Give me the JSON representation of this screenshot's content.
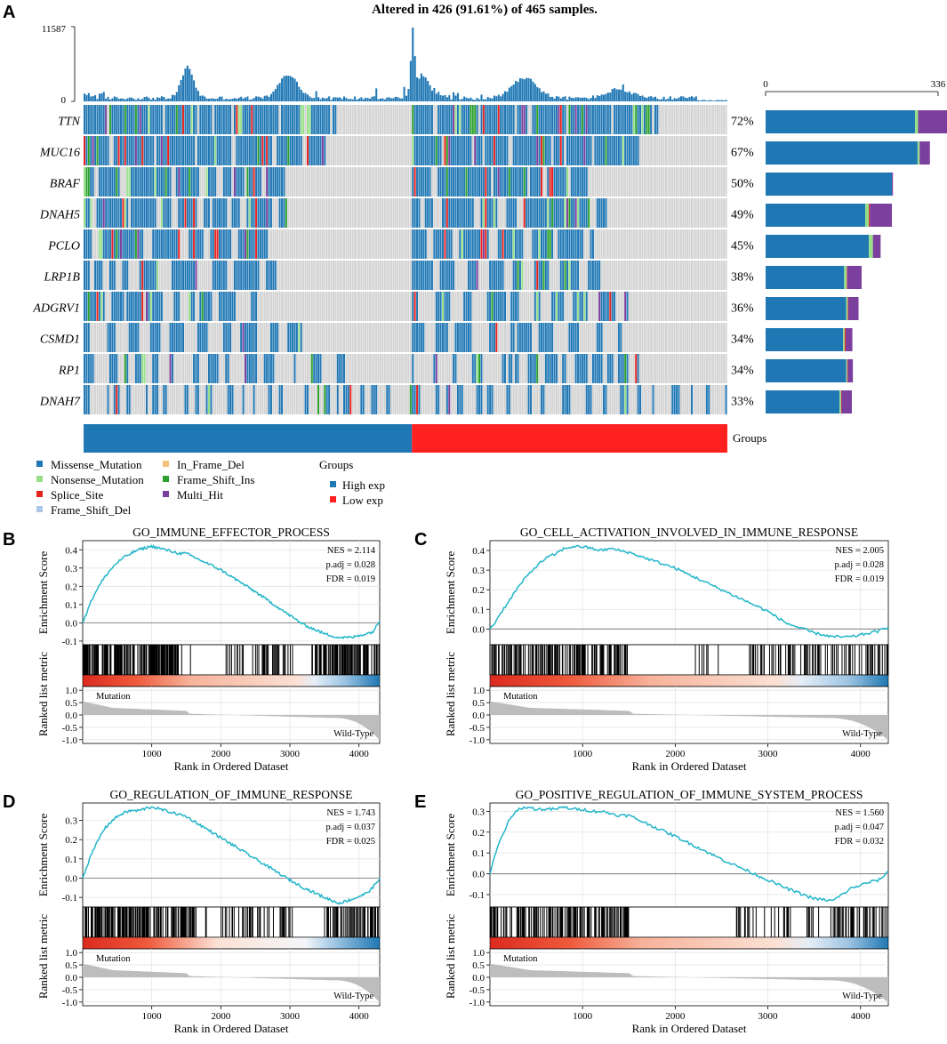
{
  "panels": {
    "A": "A",
    "B": "B",
    "C": "C",
    "D": "D",
    "E": "E"
  },
  "colors": {
    "missense": "#1f77b4",
    "nonsense": "#98df8a",
    "splice": "#e8231f",
    "frame_shift_del": "#aec7e8",
    "in_frame_del": "#f4c27a",
    "frame_shift_ins": "#2ca02c",
    "multi_hit": "#7b3f9e",
    "gray": "#d3d3d3",
    "high": "#1f77b4",
    "low": "#ff2020",
    "gsea_line": "#22b5c9"
  },
  "chart_data": [
    {
      "type": "heatmap",
      "title": "Altered in 426 (91.61%) of 465 samples.",
      "top_bar": {
        "ymax_label": "11587",
        "ymin_label": "0",
        "ylim": [
          0,
          11587
        ]
      },
      "side_bar": {
        "xmin_label": "0",
        "xmax_label": "336",
        "xlim": [
          0,
          336
        ]
      },
      "genes": [
        {
          "name": "TTN",
          "pct": "72%",
          "frac": 0.72,
          "counts": {
            "missense": 291,
            "nonsense": 6,
            "splice": 0,
            "multi_hit": 57
          }
        },
        {
          "name": "MUC16",
          "pct": "67%",
          "frac": 0.67,
          "counts": {
            "missense": 296,
            "nonsense": 4,
            "splice": 0,
            "multi_hit": 20
          }
        },
        {
          "name": "BRAF",
          "pct": "50%",
          "frac": 0.5,
          "counts": {
            "missense": 246,
            "nonsense": 0,
            "splice": 0,
            "multi_hit": 2
          }
        },
        {
          "name": "DNAH5",
          "pct": "49%",
          "frac": 0.49,
          "counts": {
            "missense": 194,
            "nonsense": 7,
            "splice": 2,
            "multi_hit": 43
          }
        },
        {
          "name": "PCLO",
          "pct": "45%",
          "frac": 0.45,
          "counts": {
            "missense": 201,
            "nonsense": 8,
            "splice": 0,
            "multi_hit": 15
          }
        },
        {
          "name": "LRP1B",
          "pct": "38%",
          "frac": 0.38,
          "counts": {
            "missense": 153,
            "nonsense": 5,
            "splice": 1,
            "multi_hit": 28
          }
        },
        {
          "name": "ADGRV1",
          "pct": "36%",
          "frac": 0.36,
          "counts": {
            "missense": 157,
            "nonsense": 3,
            "splice": 1,
            "multi_hit": 20
          }
        },
        {
          "name": "CSMD1",
          "pct": "34%",
          "frac": 0.34,
          "counts": {
            "missense": 151,
            "nonsense": 3,
            "splice": 2,
            "multi_hit": 13
          }
        },
        {
          "name": "RP1",
          "pct": "34%",
          "frac": 0.34,
          "counts": {
            "missense": 157,
            "nonsense": 2,
            "splice": 1,
            "multi_hit": 10
          }
        },
        {
          "name": "DNAH7",
          "pct": "33%",
          "frac": 0.33,
          "counts": {
            "missense": 144,
            "nonsense": 3,
            "splice": 1,
            "multi_hit": 20
          }
        }
      ],
      "groups_label": "Groups",
      "groups": {
        "high_fraction": 0.51
      },
      "legend": {
        "mutation_types": [
          "Missense_Mutation",
          "Nonsense_Mutation",
          "Splice_Site",
          "Frame_Shift_Del",
          "In_Frame_Del",
          "Frame_Shift_Ins",
          "Multi_Hit"
        ],
        "groups_title": "Groups",
        "groups": [
          "High exp",
          "Low exp"
        ]
      }
    },
    {
      "type": "line",
      "panel": "B",
      "title": "GO_IMMUNE_EFFECTOR_PROCESS",
      "stats": [
        "NES = 2.114",
        "p.adj = 0.028",
        "FDR = 0.019"
      ],
      "ylabel": "Enrichment Score",
      "ylim": [
        -0.12,
        0.45
      ],
      "yticks": [
        {
          "v": 0.4,
          "t": "0.4"
        },
        {
          "v": 0.3,
          "t": "0.3"
        },
        {
          "v": 0.2,
          "t": "0.2"
        },
        {
          "v": 0.1,
          "t": "0.1"
        },
        {
          "v": 0,
          "t": "0.0"
        },
        {
          "v": -0.1,
          "t": "-0.1"
        }
      ],
      "es_curve": {
        "x": [
          0,
          50,
          100,
          200,
          300,
          400,
          500,
          600,
          700,
          800,
          900,
          1000,
          1100,
          1200,
          1300,
          1400,
          1500,
          2000,
          2500,
          3000,
          3200,
          3500,
          3700,
          3900,
          4100,
          4200,
          4300
        ],
        "y": [
          0.0,
          0.05,
          0.1,
          0.18,
          0.24,
          0.29,
          0.33,
          0.36,
          0.38,
          0.4,
          0.41,
          0.42,
          0.41,
          0.4,
          0.39,
          0.38,
          0.38,
          0.29,
          0.17,
          0.04,
          -0.01,
          -0.06,
          -0.08,
          -0.08,
          -0.06,
          -0.05,
          0.01
        ]
      },
      "hit_zones": [
        [
          0,
          1400,
          0.6
        ],
        [
          1400,
          1650,
          0.1
        ],
        [
          2050,
          3050,
          0.28
        ],
        [
          3300,
          4300,
          0.55
        ]
      ],
      "metric_ylabel": "Ranked list metric",
      "metric_yticks": [
        {
          "v": 1.0,
          "t": "1.0"
        },
        {
          "v": 0.5,
          "t": "0.5"
        },
        {
          "v": 0,
          "t": "0.0"
        },
        {
          "v": -0.5,
          "t": "-0.5"
        },
        {
          "v": -1.0,
          "t": "-1.0"
        }
      ],
      "metric_labels": [
        "Mutation",
        "Wild-Type"
      ],
      "xlabel": "Rank in Ordered Dataset",
      "xlim": [
        0,
        4300
      ],
      "xticks": [
        {
          "v": 1000,
          "t": "1000"
        },
        {
          "v": 2000,
          "t": "2000"
        },
        {
          "v": 3000,
          "t": "3000"
        },
        {
          "v": 4000,
          "t": "4000"
        }
      ],
      "heat_stops": [
        [
          0,
          "#dc2a1e"
        ],
        [
          0.18,
          "#ef5a3c"
        ],
        [
          0.36,
          "#f7b29a"
        ],
        [
          0.72,
          "#fbe1d4"
        ],
        [
          0.78,
          "#e6eef7"
        ],
        [
          0.88,
          "#9ec5e3"
        ],
        [
          1,
          "#1f78b4"
        ]
      ]
    },
    {
      "type": "line",
      "panel": "C",
      "title": "GO_CELL_ACTIVATION_INVOLVED_IN_IMMUNE_RESPONSE",
      "stats": [
        "NES = 2.005",
        "p.adj = 0.028",
        "FDR = 0.019"
      ],
      "ylabel": "Enrichment Score",
      "ylim": [
        -0.08,
        0.45
      ],
      "yticks": [
        {
          "v": 0.4,
          "t": "0.4"
        },
        {
          "v": 0.3,
          "t": "0.3"
        },
        {
          "v": 0.2,
          "t": "0.2"
        },
        {
          "v": 0.1,
          "t": "0.1"
        },
        {
          "v": 0,
          "t": "0.0"
        }
      ],
      "es_curve": {
        "x": [
          0,
          50,
          100,
          200,
          300,
          400,
          500,
          600,
          700,
          800,
          900,
          1000,
          1100,
          1200,
          1300,
          1400,
          1500,
          2000,
          2500,
          3000,
          3200,
          3500,
          3700,
          3900,
          4100,
          4200,
          4300
        ],
        "y": [
          0.0,
          0.03,
          0.07,
          0.14,
          0.21,
          0.27,
          0.32,
          0.36,
          0.38,
          0.41,
          0.42,
          0.42,
          0.41,
          0.4,
          0.41,
          0.4,
          0.39,
          0.31,
          0.2,
          0.09,
          0.03,
          -0.02,
          -0.04,
          -0.04,
          -0.02,
          -0.01,
          0.01
        ]
      },
      "hit_zones": [
        [
          0,
          1500,
          0.6
        ],
        [
          2200,
          2500,
          0.1
        ],
        [
          2800,
          4300,
          0.45
        ]
      ],
      "metric_ylabel": "Ranked list metric",
      "metric_yticks": [
        {
          "v": 1.0,
          "t": "1.0"
        },
        {
          "v": 0.5,
          "t": "0.5"
        },
        {
          "v": 0,
          "t": "0.0"
        },
        {
          "v": -0.5,
          "t": "-0.5"
        },
        {
          "v": -1.0,
          "t": "-1.0"
        }
      ],
      "metric_labels": [
        "Mutation",
        "Wild-Type"
      ],
      "xlabel": "Rank in Ordered Dataset",
      "xlim": [
        0,
        4300
      ],
      "xticks": [
        {
          "v": 1000,
          "t": "1000"
        },
        {
          "v": 2000,
          "t": "2000"
        },
        {
          "v": 3000,
          "t": "3000"
        },
        {
          "v": 4000,
          "t": "4000"
        }
      ],
      "heat_stops": [
        [
          0,
          "#dc2a1e"
        ],
        [
          0.2,
          "#ef5a3c"
        ],
        [
          0.4,
          "#f7b29a"
        ],
        [
          0.72,
          "#fbe1d4"
        ],
        [
          0.78,
          "#e6eef7"
        ],
        [
          0.9,
          "#9ec5e3"
        ],
        [
          1,
          "#1f78b4"
        ]
      ]
    },
    {
      "type": "line",
      "panel": "D",
      "title": "GO_REGULATION_OF_IMMUNE_RESPONSE",
      "stats": [
        "NES = 1.743",
        "p.adj = 0.037",
        "FDR = 0.025"
      ],
      "ylabel": "Enrichment Score",
      "ylim": [
        -0.15,
        0.39
      ],
      "yticks": [
        {
          "v": 0.3,
          "t": "0.3"
        },
        {
          "v": 0.2,
          "t": "0.2"
        },
        {
          "v": 0.1,
          "t": "0.1"
        },
        {
          "v": 0,
          "t": "0.0"
        },
        {
          "v": -0.1,
          "t": "-0.1"
        }
      ],
      "es_curve": {
        "x": [
          0,
          50,
          100,
          200,
          300,
          400,
          500,
          600,
          700,
          800,
          900,
          1000,
          1100,
          1200,
          1300,
          1400,
          1500,
          2000,
          2500,
          3000,
          3200,
          3500,
          3700,
          3900,
          4100,
          4200,
          4300
        ],
        "y": [
          0.0,
          0.05,
          0.1,
          0.18,
          0.25,
          0.29,
          0.32,
          0.34,
          0.35,
          0.35,
          0.36,
          0.37,
          0.36,
          0.35,
          0.34,
          0.33,
          0.32,
          0.21,
          0.1,
          -0.01,
          -0.05,
          -0.1,
          -0.13,
          -0.11,
          -0.08,
          -0.05,
          0.0
        ]
      },
      "hit_zones": [
        [
          0,
          1650,
          0.55
        ],
        [
          1650,
          1900,
          0.12
        ],
        [
          2000,
          3100,
          0.25
        ],
        [
          3500,
          4300,
          0.55
        ]
      ],
      "metric_ylabel": "Ranked list metric",
      "metric_yticks": [
        {
          "v": 1.0,
          "t": "1.0"
        },
        {
          "v": 0.5,
          "t": "0.5"
        },
        {
          "v": 0,
          "t": "0.0"
        },
        {
          "v": -0.5,
          "t": "-0.5"
        },
        {
          "v": -1.0,
          "t": "-1.0"
        }
      ],
      "metric_labels": [
        "Mutation",
        "Wild-Type"
      ],
      "xlabel": "Rank in Ordered Dataset",
      "xlim": [
        0,
        4300
      ],
      "xticks": [
        {
          "v": 1000,
          "t": "1000"
        },
        {
          "v": 2000,
          "t": "2000"
        },
        {
          "v": 3000,
          "t": "3000"
        },
        {
          "v": 4000,
          "t": "4000"
        }
      ],
      "heat_stops": [
        [
          0,
          "#dc2a1e"
        ],
        [
          0.22,
          "#ef5a3c"
        ],
        [
          0.45,
          "#fbe1d4"
        ],
        [
          0.75,
          "#f4f6fa"
        ],
        [
          0.85,
          "#9ec5e3"
        ],
        [
          1,
          "#1f78b4"
        ]
      ]
    },
    {
      "type": "line",
      "panel": "E",
      "title": "GO_POSITIVE_REGULATION_OF_IMMUNE_SYSTEM_PROCESS",
      "stats": [
        "NES = 1.560",
        "p.adj = 0.047",
        "FDR = 0.032"
      ],
      "ylabel": "Enrichment Score",
      "ylim": [
        -0.16,
        0.34
      ],
      "yticks": [
        {
          "v": 0.3,
          "t": "0.3"
        },
        {
          "v": 0.2,
          "t": "0.2"
        },
        {
          "v": 0.1,
          "t": "0.1"
        },
        {
          "v": 0,
          "t": "0.0"
        },
        {
          "v": -0.1,
          "t": "-0.1"
        }
      ],
      "es_curve": {
        "x": [
          0,
          50,
          100,
          200,
          300,
          400,
          500,
          600,
          700,
          800,
          900,
          1000,
          1100,
          1200,
          1300,
          1400,
          1500,
          2000,
          2500,
          3000,
          3200,
          3500,
          3700,
          3900,
          4100,
          4200,
          4300
        ],
        "y": [
          0.0,
          0.08,
          0.15,
          0.25,
          0.31,
          0.32,
          0.31,
          0.31,
          0.31,
          0.32,
          0.31,
          0.31,
          0.3,
          0.3,
          0.29,
          0.28,
          0.28,
          0.18,
          0.07,
          -0.03,
          -0.07,
          -0.12,
          -0.13,
          -0.07,
          -0.04,
          -0.03,
          0.01
        ]
      },
      "hit_zones": [
        [
          0,
          1500,
          0.6
        ],
        [
          2600,
          3700,
          0.22
        ],
        [
          3700,
          4300,
          0.5
        ]
      ],
      "metric_ylabel": "Ranked list metric",
      "metric_yticks": [
        {
          "v": 1.0,
          "t": "1.0"
        },
        {
          "v": 0.5,
          "t": "0.5"
        },
        {
          "v": 0,
          "t": "0.0"
        },
        {
          "v": -0.5,
          "t": "-0.5"
        },
        {
          "v": -1.0,
          "t": "-1.0"
        }
      ],
      "metric_labels": [
        "Mutation",
        "Wild-Type"
      ],
      "xlabel": "Rank in Ordered Dataset",
      "xlim": [
        0,
        4300
      ],
      "xticks": [
        {
          "v": 1000,
          "t": "1000"
        },
        {
          "v": 2000,
          "t": "2000"
        },
        {
          "v": 3000,
          "t": "3000"
        },
        {
          "v": 4000,
          "t": "4000"
        }
      ],
      "heat_stops": [
        [
          0,
          "#dc2a1e"
        ],
        [
          0.2,
          "#ef5a3c"
        ],
        [
          0.38,
          "#f7b29a"
        ],
        [
          0.72,
          "#fbe1d4"
        ],
        [
          0.8,
          "#e6eef7"
        ],
        [
          0.9,
          "#9ec5e3"
        ],
        [
          1,
          "#1f78b4"
        ]
      ]
    }
  ]
}
